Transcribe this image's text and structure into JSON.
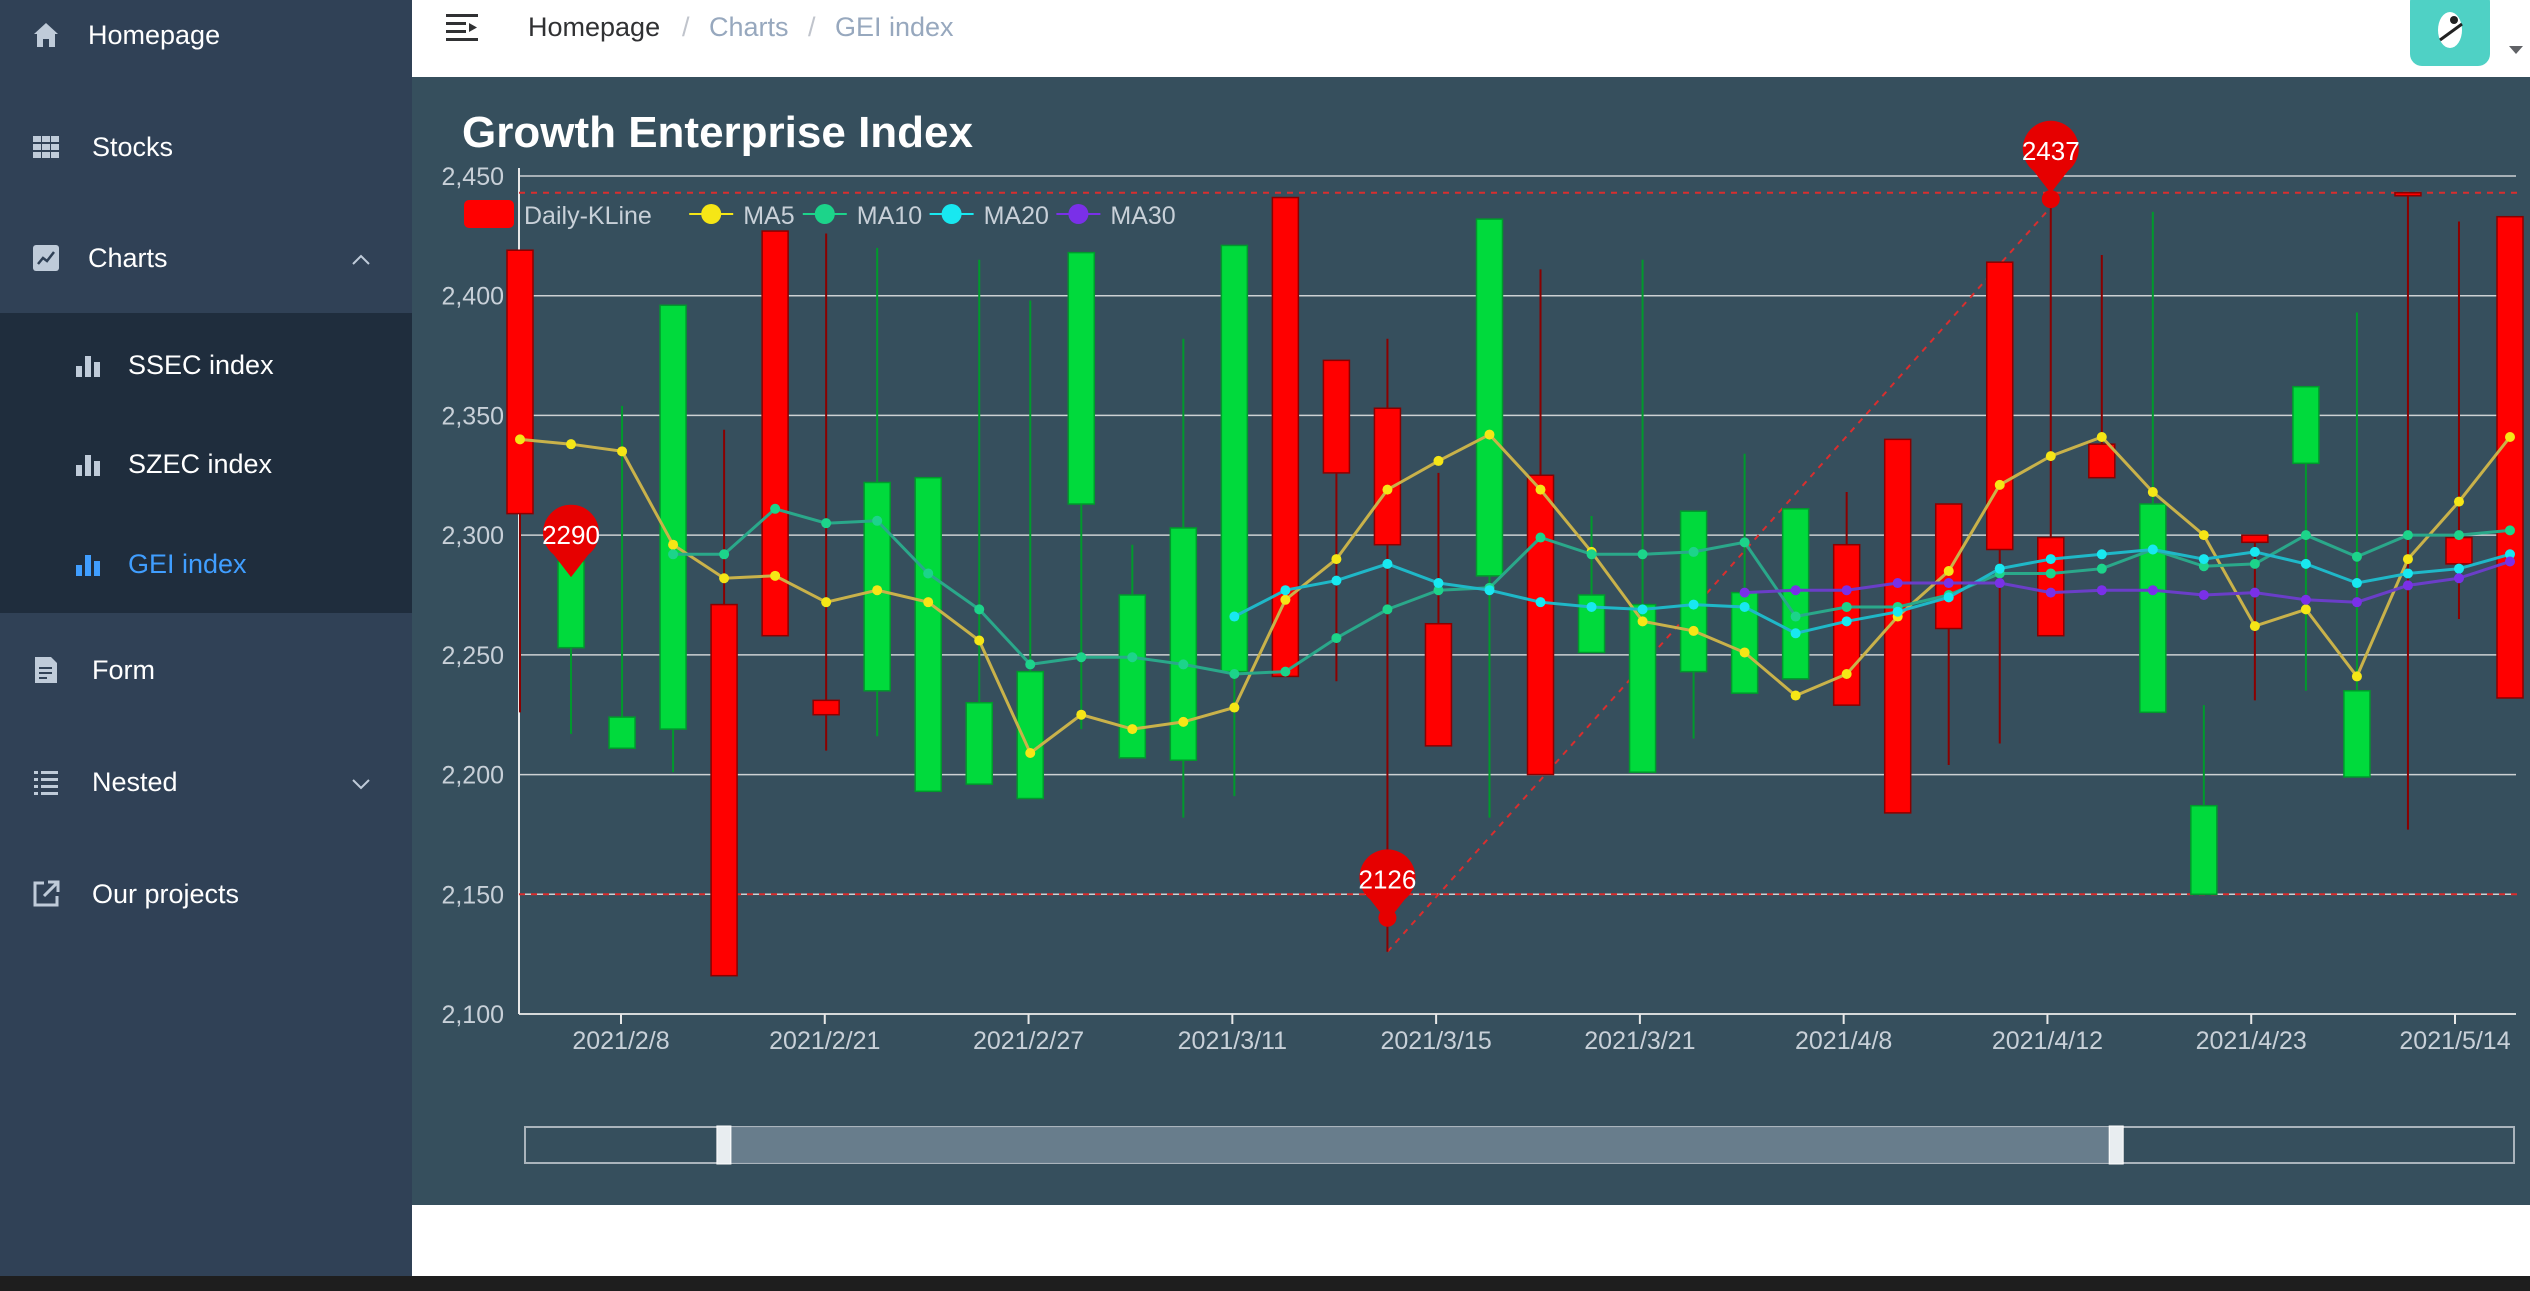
{
  "sidebar": {
    "items": [
      {
        "label": "Homepage",
        "icon": "home-icon"
      },
      {
        "label": "Stocks",
        "icon": "table-icon"
      },
      {
        "label": "Charts",
        "icon": "chart-line-icon"
      },
      {
        "label": "SSEC index",
        "icon": "bar-chart-icon"
      },
      {
        "label": "SZEC index",
        "icon": "bar-chart-icon"
      },
      {
        "label": "GEI index",
        "icon": "bar-chart-icon"
      },
      {
        "label": "Form",
        "icon": "form-icon"
      },
      {
        "label": "Nested",
        "icon": "list-icon"
      },
      {
        "label": "Our projects",
        "icon": "external-link-icon"
      }
    ],
    "active_color": "#409eff"
  },
  "breadcrumb": {
    "items": [
      "Homepage",
      "Charts",
      "GEI index"
    ],
    "separator": "/"
  },
  "chart_data": {
    "type": "candlestick",
    "title": "Growth Enterprise Index",
    "legend": [
      {
        "name": "Daily-KLine",
        "color": "#ff0000"
      },
      {
        "name": "MA5",
        "color": "#f5e616"
      },
      {
        "name": "MA10",
        "color": "#1cd48a"
      },
      {
        "name": "MA20",
        "color": "#18e8f0"
      },
      {
        "name": "MA30",
        "color": "#7a30e8"
      }
    ],
    "y_ticks": [
      "2,100",
      "2,150",
      "2,200",
      "2,250",
      "2,300",
      "2,350",
      "2,400",
      "2,450"
    ],
    "ylim": [
      2100,
      2450
    ],
    "x_labels": [
      "2021/2/8",
      "2021/2/21",
      "2021/2/27",
      "2021/3/11",
      "2021/3/15",
      "2021/3/21",
      "2021/4/8",
      "2021/4/12",
      "2021/4/23",
      "2021/5/14"
    ],
    "up_color": "#ff0000",
    "down_color": "#00da3c",
    "candles": [
      {
        "o": 2309,
        "c": 2419,
        "l": 2226,
        "h": 2419
      },
      {
        "o": 2289,
        "c": 2253,
        "l": 2217,
        "h": 2289
      },
      {
        "o": 2224,
        "c": 2211,
        "l": 2211,
        "h": 2354
      },
      {
        "o": 2396,
        "c": 2219,
        "l": 2201,
        "h": 2396
      },
      {
        "o": 2116,
        "c": 2271,
        "l": 2116,
        "h": 2344
      },
      {
        "o": 2258,
        "c": 2427,
        "l": 2258,
        "h": 2427
      },
      {
        "o": 2225,
        "c": 2231,
        "l": 2210,
        "h": 2426
      },
      {
        "o": 2322,
        "c": 2235,
        "l": 2216,
        "h": 2420
      },
      {
        "o": 2324,
        "c": 2193,
        "l": 2193,
        "h": 2324
      },
      {
        "o": 2230,
        "c": 2196,
        "l": 2196,
        "h": 2415
      },
      {
        "o": 2243,
        "c": 2190,
        "l": 2190,
        "h": 2398
      },
      {
        "o": 2418,
        "c": 2313,
        "l": 2219,
        "h": 2418
      },
      {
        "o": 2275,
        "c": 2207,
        "l": 2207,
        "h": 2296
      },
      {
        "o": 2303,
        "c": 2206,
        "l": 2182,
        "h": 2382
      },
      {
        "o": 2421,
        "c": 2243,
        "l": 2191,
        "h": 2421
      },
      {
        "o": 2241,
        "c": 2441,
        "l": 2241,
        "h": 2441
      },
      {
        "o": 2326,
        "c": 2373,
        "l": 2239,
        "h": 2373
      },
      {
        "o": 2296,
        "c": 2353,
        "l": 2126,
        "h": 2382
      },
      {
        "o": 2212,
        "c": 2263,
        "l": 2212,
        "h": 2326
      },
      {
        "o": 2432,
        "c": 2283,
        "l": 2182,
        "h": 2432
      },
      {
        "o": 2200,
        "c": 2325,
        "l": 2200,
        "h": 2411
      },
      {
        "o": 2275,
        "c": 2251,
        "l": 2251,
        "h": 2308
      },
      {
        "o": 2271,
        "c": 2201,
        "l": 2201,
        "h": 2415
      },
      {
        "o": 2310,
        "c": 2243,
        "l": 2215,
        "h": 2310
      },
      {
        "o": 2276,
        "c": 2234,
        "l": 2234,
        "h": 2334
      },
      {
        "o": 2311,
        "c": 2240,
        "l": 2240,
        "h": 2311
      },
      {
        "o": 2229,
        "c": 2296,
        "l": 2229,
        "h": 2318
      },
      {
        "o": 2184,
        "c": 2340,
        "l": 2184,
        "h": 2340
      },
      {
        "o": 2261,
        "c": 2313,
        "l": 2204,
        "h": 2313
      },
      {
        "o": 2294,
        "c": 2414,
        "l": 2213,
        "h": 2414
      },
      {
        "o": 2258,
        "c": 2299,
        "l": 2258,
        "h": 2437
      },
      {
        "o": 2324,
        "c": 2338,
        "l": 2324,
        "h": 2417
      },
      {
        "o": 2313,
        "c": 2226,
        "l": 2226,
        "h": 2435
      },
      {
        "o": 2187,
        "c": 2150,
        "l": 2150,
        "h": 2229
      },
      {
        "o": 2297,
        "c": 2300,
        "l": 2231,
        "h": 2300
      },
      {
        "o": 2362,
        "c": 2330,
        "l": 2235,
        "h": 2362
      },
      {
        "o": 2235,
        "c": 2199,
        "l": 2199,
        "h": 2393
      },
      {
        "o": 2443,
        "c": 2443,
        "l": 2177,
        "h": 2443
      },
      {
        "o": 2288,
        "c": 2299,
        "l": 2265,
        "h": 2431
      },
      {
        "o": 2232,
        "c": 2433,
        "l": 2232,
        "h": 2433
      }
    ],
    "ma5": [
      2340,
      2338,
      2335,
      2296,
      2282,
      2283,
      2272,
      2277,
      2272,
      2256,
      2209,
      2225,
      2219,
      2222,
      2228,
      2273,
      2290,
      2319,
      2331,
      2342,
      2319,
      2293,
      2264,
      2260,
      2251,
      2233,
      2242,
      2266,
      2285,
      2321,
      2333,
      2341,
      2318,
      2300,
      2262,
      2269,
      2241,
      2290,
      2314,
      2341
    ],
    "ma10": [
      null,
      null,
      null,
      2292,
      2292,
      2311,
      2305,
      2306,
      2284,
      2269,
      2246,
      2249,
      2249,
      2246,
      2242,
      2243,
      2257,
      2269,
      2277,
      2278,
      2299,
      2292,
      2292,
      2293,
      2297,
      2266,
      2270,
      2270,
      2275,
      2284,
      2284,
      2286,
      2294,
      2287,
      2288,
      2300,
      2291,
      2300,
      2300,
      2302
    ],
    "ma20": [
      null,
      null,
      null,
      null,
      null,
      null,
      null,
      null,
      null,
      null,
      null,
      null,
      null,
      null,
      2266,
      2277,
      2281,
      2288,
      2280,
      2277,
      2272,
      2270,
      2269,
      2271,
      2270,
      2259,
      2264,
      2268,
      2274,
      2286,
      2290,
      2292,
      2294,
      2290,
      2293,
      2288,
      2280,
      2284,
      2286,
      2292
    ],
    "ma30": [
      null,
      null,
      null,
      null,
      null,
      null,
      null,
      null,
      null,
      null,
      null,
      null,
      null,
      null,
      null,
      null,
      null,
      null,
      null,
      null,
      null,
      null,
      null,
      null,
      2276,
      2277,
      2277,
      2280,
      2280,
      2280,
      2276,
      2277,
      2277,
      2275,
      2276,
      2273,
      2272,
      2279,
      2282,
      2289
    ],
    "mark_points": [
      {
        "label": "2290",
        "value": 2290,
        "index": 1
      },
      {
        "label": "2126",
        "value": 2126,
        "index": 17
      },
      {
        "label": "2437",
        "value": 2437,
        "index": 30
      }
    ],
    "mark_lines": {
      "max": 2443,
      "min": 2150,
      "color": "#d92e2e"
    },
    "data_zoom": {
      "start_fraction": 0.1,
      "end_fraction": 0.8
    }
  }
}
